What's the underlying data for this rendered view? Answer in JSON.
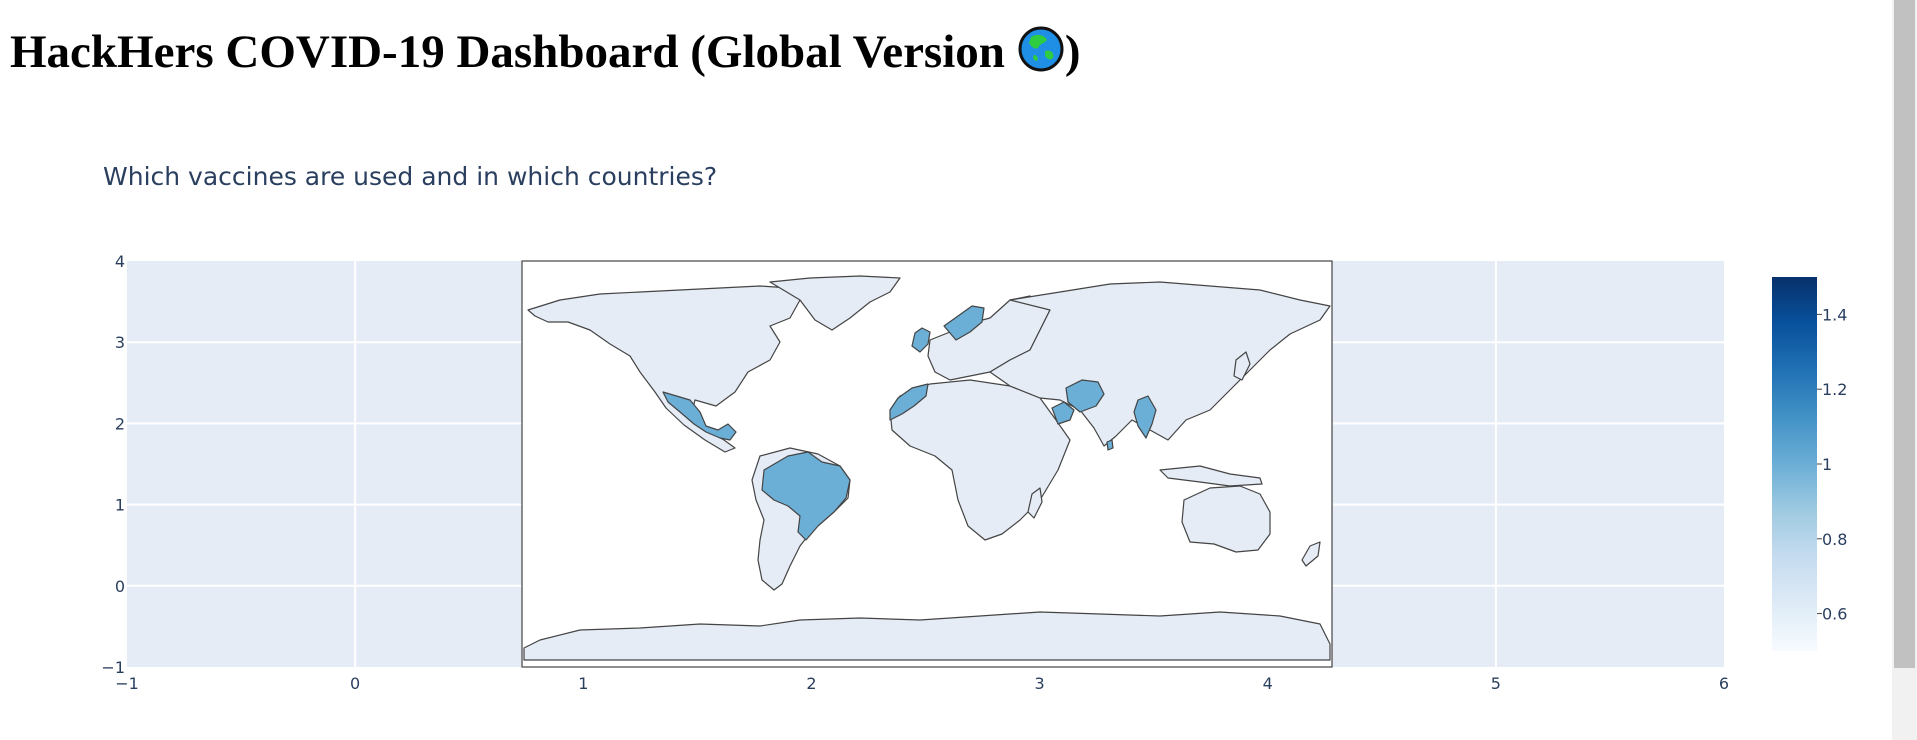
{
  "page": {
    "title": "HackHers COVID-19 Dashboard (Global Version",
    "title_end": ")",
    "globe_icon": "globe-asia-icon"
  },
  "chart_data": {
    "type": "choropleth",
    "title": "Which vaccines are used and in which countries?",
    "x_ticks": [
      "−1",
      "0",
      "1",
      "2",
      "3",
      "4",
      "5",
      "6"
    ],
    "y_ticks": [
      "4",
      "3",
      "2",
      "1",
      "0",
      "−1"
    ],
    "xlim": [
      -1,
      6
    ],
    "ylim": [
      -1,
      4
    ],
    "grid": true,
    "colorbar": {
      "ticks": [
        "1.4",
        "1.2",
        "1",
        "0.8",
        "0.6"
      ],
      "tick_values": [
        1.4,
        1.2,
        1.0,
        0.8,
        0.6
      ],
      "range": [
        0.5,
        1.5
      ],
      "colorscale": "Blues"
    },
    "highlighted_countries": [
      "United Kingdom",
      "Sweden",
      "Mexico",
      "Brazil",
      "Morocco",
      "Oman",
      "Pakistan",
      "Myanmar",
      "Sri Lanka"
    ],
    "highlighted_value": 1,
    "other_value": 0.5,
    "colors": {
      "plot_bg": "#e5ecf6",
      "land_base": "#e5ecf6",
      "land_highlight": "#6baed6",
      "ocean": "#ffffff",
      "border": "#444444",
      "text": "#2a3f5f"
    }
  }
}
